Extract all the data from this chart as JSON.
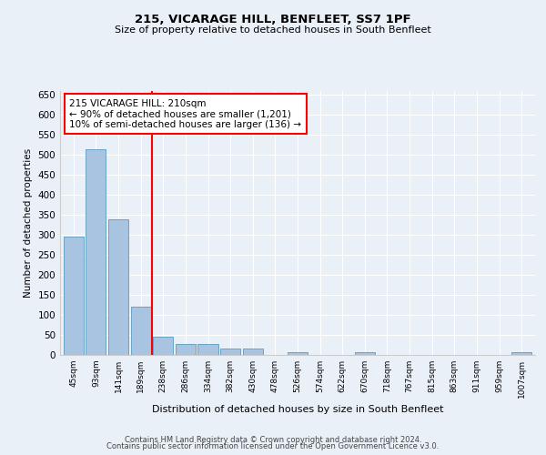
{
  "title1": "215, VICARAGE HILL, BENFLEET, SS7 1PF",
  "title2": "Size of property relative to detached houses in South Benfleet",
  "xlabel": "Distribution of detached houses by size in South Benfleet",
  "ylabel": "Number of detached properties",
  "footer1": "Contains HM Land Registry data © Crown copyright and database right 2024.",
  "footer2": "Contains public sector information licensed under the Open Government Licence v3.0.",
  "categories": [
    "45sqm",
    "93sqm",
    "141sqm",
    "189sqm",
    "238sqm",
    "286sqm",
    "334sqm",
    "382sqm",
    "430sqm",
    "478sqm",
    "526sqm",
    "574sqm",
    "622sqm",
    "670sqm",
    "718sqm",
    "767sqm",
    "815sqm",
    "863sqm",
    "911sqm",
    "959sqm",
    "1007sqm"
  ],
  "values": [
    295,
    515,
    340,
    120,
    45,
    28,
    28,
    17,
    17,
    0,
    7,
    0,
    0,
    7,
    0,
    0,
    0,
    0,
    0,
    0,
    7
  ],
  "bar_color": "#a8c4e0",
  "bar_edge_color": "#5a9abf",
  "ylim": [
    0,
    660
  ],
  "yticks": [
    0,
    50,
    100,
    150,
    200,
    250,
    300,
    350,
    400,
    450,
    500,
    550,
    600,
    650
  ],
  "property_line_x": 3.5,
  "annotation_text": "215 VICARAGE HILL: 210sqm\n← 90% of detached houses are smaller (1,201)\n10% of semi-detached houses are larger (136) →",
  "annotation_box_color": "white",
  "annotation_box_edge": "red",
  "red_line_color": "red",
  "bg_color": "#eaf0f8",
  "grid_color": "white"
}
